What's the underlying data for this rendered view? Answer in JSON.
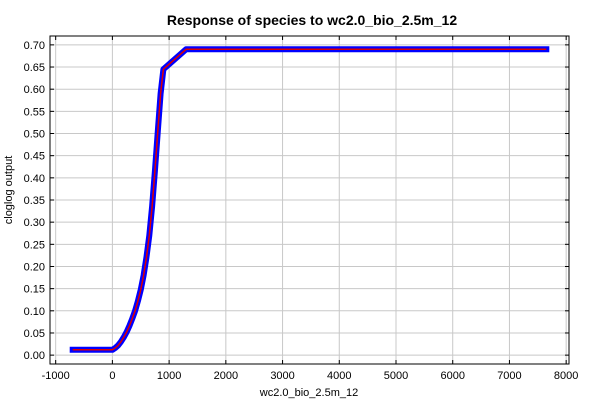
{
  "chart_data": {
    "type": "line",
    "title": "Response of species to wc2.0_bio_2.5m_12",
    "xlabel": "wc2.0_bio_2.5m_12",
    "ylabel": "cloglog output",
    "xlim": [
      -1100,
      8050
    ],
    "ylim": [
      -0.02,
      0.72
    ],
    "xticks": [
      -1000,
      0,
      1000,
      2000,
      3000,
      4000,
      5000,
      6000,
      7000,
      8000
    ],
    "xtick_labels": [
      "-1000",
      "0",
      "1000",
      "2000",
      "3000",
      "4000",
      "5000",
      "6000",
      "7000",
      "8000"
    ],
    "yticks": [
      0.0,
      0.05,
      0.1,
      0.15,
      0.2,
      0.25,
      0.3,
      0.35,
      0.4,
      0.45,
      0.5,
      0.55,
      0.6,
      0.65,
      0.7
    ],
    "ytick_labels": [
      "0.00",
      "0.05",
      "0.10",
      "0.15",
      "0.20",
      "0.25",
      "0.30",
      "0.35",
      "0.40",
      "0.45",
      "0.50",
      "0.55",
      "0.60",
      "0.65",
      "0.70"
    ],
    "grid": true,
    "series": [
      {
        "color_band": "#0000ff",
        "color_line": "#dd0000",
        "x": [
          -700,
          0,
          50,
          100,
          150,
          200,
          250,
          300,
          350,
          400,
          450,
          500,
          550,
          600,
          650,
          700,
          750,
          800,
          850,
          900,
          1300,
          7650
        ],
        "y": [
          0.012,
          0.012,
          0.016,
          0.022,
          0.03,
          0.04,
          0.052,
          0.066,
          0.082,
          0.1,
          0.122,
          0.148,
          0.18,
          0.22,
          0.27,
          0.335,
          0.415,
          0.505,
          0.59,
          0.645,
          0.69,
          0.69
        ]
      }
    ]
  }
}
